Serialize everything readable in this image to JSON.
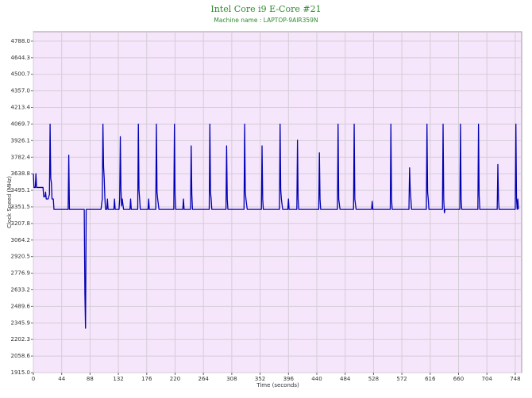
{
  "chart_data": {
    "type": "line",
    "title": "Intel Core i9 E-Core #21",
    "subtitle": "Machine name : LAPTOP-9AIR359N",
    "x_label": "Time (seconds)",
    "y_label": "Clock Speed (MHz)",
    "color": "#0000b4",
    "grid": true,
    "xlim": [
      0,
      758
    ],
    "ylim": [
      1915,
      4870
    ],
    "xticks": [
      0,
      44,
      88,
      132,
      176,
      220,
      264,
      308,
      352,
      396,
      440,
      484,
      528,
      572,
      616,
      660,
      704,
      748
    ],
    "yticks": [
      {
        "value": 1915.0,
        "label": "1915.0"
      },
      {
        "value": 2058.6,
        "label": "2058.6"
      },
      {
        "value": 2202.3,
        "label": "2202.3"
      },
      {
        "value": 2345.9,
        "label": "2345.9"
      },
      {
        "value": 2489.6,
        "label": "2489.6"
      },
      {
        "value": 2633.2,
        "label": "2633.2"
      },
      {
        "value": 2776.9,
        "label": "2776.9"
      },
      {
        "value": 2920.5,
        "label": "2920.5"
      },
      {
        "value": 3064.2,
        "label": "3064.2"
      },
      {
        "value": 3207.8,
        "label": "3207.8"
      },
      {
        "value": 3351.5,
        "label": "3351.5"
      },
      {
        "value": 3495.1,
        "label": "3495.1"
      },
      {
        "value": 3638.8,
        "label": "3638.8"
      },
      {
        "value": 3782.4,
        "label": "3782.4"
      },
      {
        "value": 3926.1,
        "label": "3926.1"
      },
      {
        "value": 4069.7,
        "label": "4069.7"
      },
      {
        "value": 4213.4,
        "label": "4213.4"
      },
      {
        "value": 4357.0,
        "label": "4357.0"
      },
      {
        "value": 4500.7,
        "label": "4500.7"
      },
      {
        "value": 4644.3,
        "label": "4644.3"
      },
      {
        "value": 4788.0,
        "label": "4788.0"
      }
    ],
    "x": [
      0,
      1,
      3,
      4,
      5,
      15,
      16,
      18,
      19,
      20,
      23,
      25,
      26,
      27,
      28,
      29,
      31,
      32,
      54,
      55,
      56,
      79,
      80,
      81,
      82,
      105,
      107,
      108,
      109,
      110,
      111,
      112,
      114,
      115,
      116,
      125,
      126,
      127,
      133,
      134,
      135,
      136,
      137,
      138,
      140,
      150,
      151,
      152,
      162,
      163,
      164,
      165,
      166,
      178,
      179,
      180,
      190,
      191,
      192,
      193,
      195,
      218,
      219,
      220,
      221,
      232,
      233,
      234,
      244,
      245,
      246,
      247,
      273,
      274,
      275,
      276,
      277,
      299,
      300,
      301,
      302,
      327,
      328,
      329,
      330,
      332,
      354,
      355,
      356,
      357,
      382,
      383,
      384,
      385,
      387,
      395,
      396,
      397,
      409,
      410,
      411,
      412,
      443,
      444,
      445,
      446,
      472,
      473,
      474,
      476,
      497,
      498,
      499,
      501,
      525,
      526,
      527,
      554,
      555,
      556,
      557,
      583,
      584,
      585,
      586,
      587,
      610,
      611,
      612,
      613,
      614,
      635,
      636,
      637,
      638,
      639,
      662,
      663,
      664,
      665,
      690,
      691,
      692,
      693,
      720,
      721,
      722,
      723,
      748,
      749,
      750,
      751,
      752,
      753
    ],
    "values": [
      3640,
      3520,
      3520,
      3640,
      3520,
      3520,
      3440,
      3440,
      3480,
      3420,
      3420,
      3460,
      4069,
      3600,
      3560,
      3420,
      3420,
      3330,
      3330,
      3800,
      3330,
      3330,
      2600,
      2300,
      3330,
      3330,
      3420,
      4069,
      3700,
      3600,
      3430,
      3330,
      3330,
      3420,
      3330,
      3330,
      3420,
      3330,
      3330,
      3420,
      3960,
      3500,
      3360,
      3420,
      3330,
      3330,
      3420,
      3330,
      3330,
      4069,
      3500,
      3420,
      3330,
      3330,
      3420,
      3330,
      3330,
      4069,
      3480,
      3420,
      3330,
      3330,
      4069,
      3450,
      3330,
      3330,
      3420,
      3330,
      3330,
      3880,
      3460,
      3330,
      3330,
      4069,
      3480,
      3420,
      3330,
      3330,
      3880,
      3420,
      3330,
      3330,
      4069,
      3480,
      3420,
      3330,
      3330,
      3880,
      3420,
      3330,
      3330,
      4069,
      3500,
      3420,
      3330,
      3330,
      3420,
      3330,
      3330,
      3930,
      3420,
      3330,
      3330,
      3820,
      3420,
      3330,
      3330,
      4069,
      3420,
      3330,
      3330,
      4069,
      3420,
      3330,
      3330,
      3400,
      3330,
      3330,
      4069,
      3420,
      3330,
      3330,
      3690,
      3500,
      3420,
      3330,
      3330,
      4069,
      3480,
      3420,
      3330,
      3330,
      4069,
      3420,
      3300,
      3330,
      3330,
      4069,
      3420,
      3330,
      3330,
      4069,
      3450,
      3330,
      3330,
      3720,
      3420,
      3330,
      3330,
      4069,
      3420,
      3330,
      3420,
      3330
    ]
  }
}
